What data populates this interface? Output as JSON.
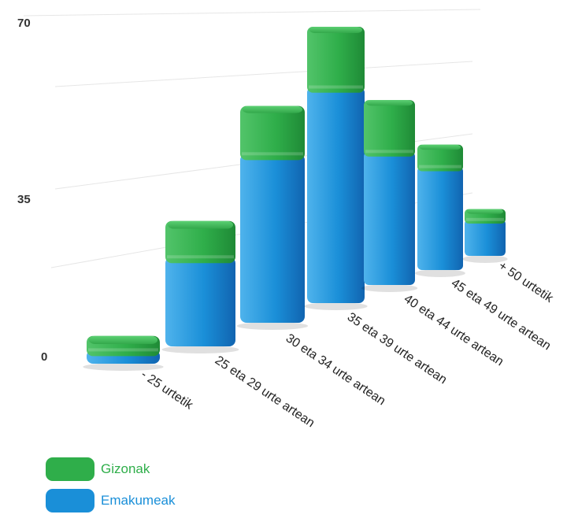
{
  "chart_data": {
    "type": "bar",
    "stacked": true,
    "categories": [
      "- 25 urtetik",
      "25 eta 29 urte artean",
      "30 eta 34 urte artean",
      "35 eta 39 urte artean",
      "40 eta 44 urte artean",
      "45 eta 49 urte artean",
      "+ 50 urtetik"
    ],
    "series": [
      {
        "name": "Emakumeak",
        "color": "#1a8fd8",
        "values": [
          4,
          25,
          53,
          61,
          39,
          33,
          14
        ]
      },
      {
        "name": "Gizonak",
        "color": "#2fae4a",
        "values": [
          4,
          10,
          15,
          17,
          15,
          7,
          4
        ]
      }
    ],
    "yticks": [
      "0",
      "35",
      "70"
    ],
    "ylim": [
      0,
      70
    ],
    "grid": true,
    "legend_position": "bottom-left"
  }
}
